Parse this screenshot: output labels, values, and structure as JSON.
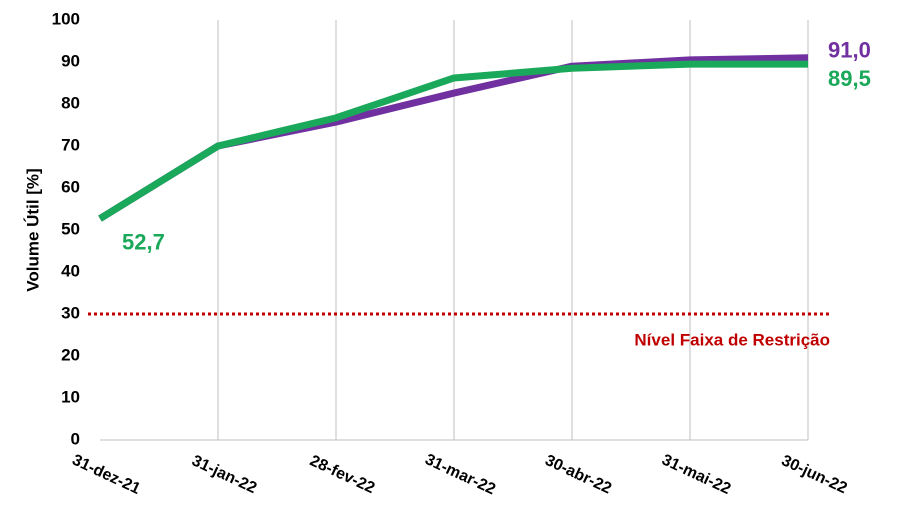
{
  "chart_data": {
    "type": "line",
    "y_label": "Volume Útil [%]",
    "categories": [
      "31-dez-21",
      "31-jan-22",
      "28-fev-22",
      "31-mar-22",
      "30-abr-22",
      "31-mai-22",
      "30-jun-22"
    ],
    "series": [
      {
        "color": "#7030a0",
        "values": [
          52.7,
          70,
          75.7,
          82.6,
          89,
          90.5,
          91.0
        ],
        "value_labels": [
          null,
          null,
          null,
          null,
          null,
          null,
          "91,0"
        ]
      },
      {
        "color": "#1aa85a",
        "values": [
          52.7,
          70,
          76.7,
          86.2,
          88.5,
          89.5,
          89.5
        ],
        "value_labels": [
          "52,7",
          null,
          null,
          null,
          null,
          null,
          "89,5"
        ]
      }
    ],
    "ylim": [
      0,
      100
    ],
    "yticks": [
      0,
      10,
      20,
      30,
      40,
      50,
      60,
      70,
      80,
      90,
      100
    ],
    "reference_line": {
      "value": 30,
      "label": "Nível Faixa de Restrição",
      "color": "#c00000"
    }
  }
}
